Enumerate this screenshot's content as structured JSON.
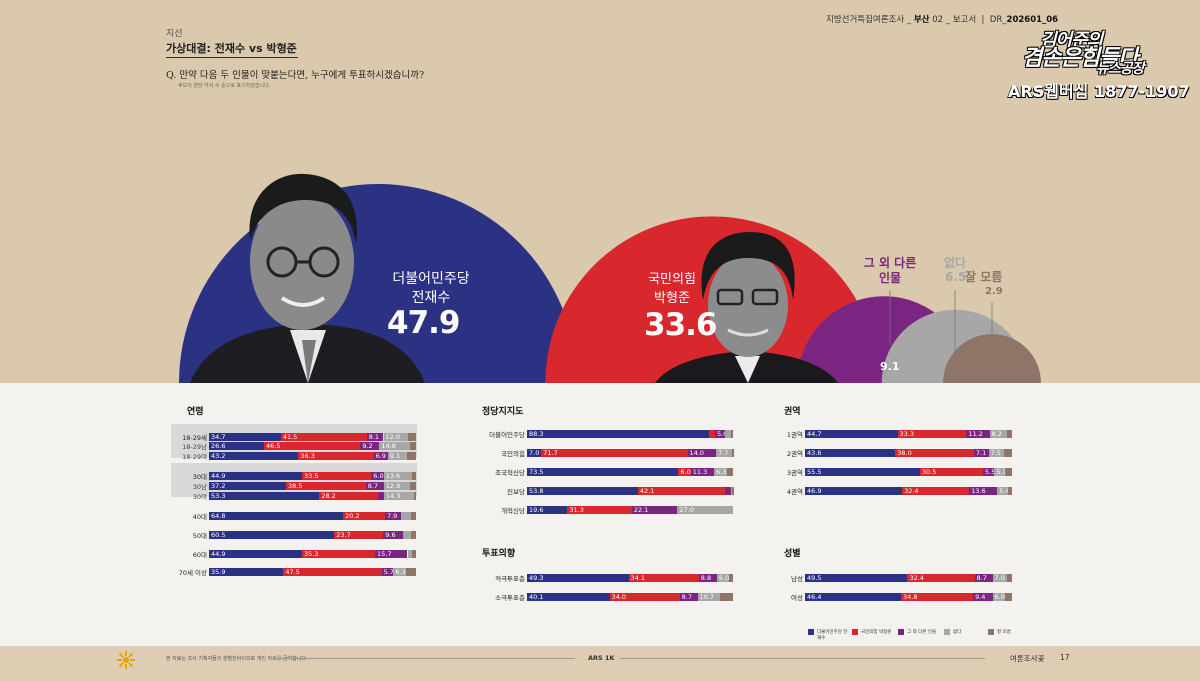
{
  "header": {
    "section": "지선",
    "title": "가상대결: 전재수 vs 박형준",
    "question": "Q. 만약 다음 두 인물이 맞붙는다면, 누구에게 투표하시겠습니까?",
    "note": "후보의 원당 여서 수 순으로 표기하였습니다.",
    "meta_left": "지방선거특집여론조사",
    "meta_region": "부산",
    "meta_page": "02",
    "meta_report": "보고서",
    "meta_code_prefix": "DR_",
    "meta_code": "202601_06"
  },
  "logo": {
    "line1": "김어준의",
    "line2": "겸손은힘들다",
    "line3": "뉴스공장",
    "line4": "ARS웹버십 1877-1907"
  },
  "colors": {
    "dem": "#2b3284",
    "ppp": "#d9272e",
    "other": "#7a2582",
    "none": "#a7a7a7",
    "dunno": "#8f7568"
  },
  "chart_data": [
    {
      "type": "bubble",
      "title": "가상대결: 전재수 vs 박형준",
      "items": [
        {
          "party": "더불어민주당",
          "name": "전재수",
          "value": 47.9,
          "color": "#2b3284"
        },
        {
          "party": "국민의힘",
          "name": "박형준",
          "value": 33.6,
          "color": "#d9272e"
        },
        {
          "party": "그 외 다른 인물",
          "name": "",
          "value": 9.1,
          "color": "#7a2582"
        },
        {
          "party": "없다",
          "name": "",
          "value": 6.5,
          "color": "#a7a7a7"
        },
        {
          "party": "잘 모름",
          "name": "",
          "value": 2.9,
          "color": "#8f7568"
        }
      ]
    },
    {
      "type": "bar",
      "stacked": true,
      "title": "연령",
      "categories": [
        "18-29세",
        "18-29남",
        "18-29여",
        "30대",
        "30남",
        "30여",
        "40대",
        "50대",
        "60대",
        "70세 이상"
      ],
      "series": [
        {
          "name": "더불어민주당 전재수",
          "values": [
            34.7,
            26.6,
            43.2,
            44.9,
            37.2,
            53.3,
            64.8,
            60.5,
            44.9,
            35.9
          ]
        },
        {
          "name": "국민의힘 박형준",
          "values": [
            41.5,
            46.5,
            36.3,
            33.5,
            38.5,
            28.2,
            20.2,
            23.7,
            35.3,
            47.5
          ]
        },
        {
          "name": "그 외 다른 인물",
          "values": [
            8.1,
            9.2,
            6.9,
            6.0,
            8.7,
            3.0,
            7.9,
            9.6,
            15.7,
            5.7
          ]
        },
        {
          "name": "없다",
          "values": [
            12.0,
            14.8,
            9.1,
            13.6,
            12.9,
            14.3,
            4.5,
            3.8,
            2.0,
            6.3
          ]
        },
        {
          "name": "잘 모름",
          "values": [
            3.7,
            2.9,
            4.5,
            2.0,
            2.7,
            1.2,
            2.6,
            2.4,
            2.1,
            4.6
          ]
        }
      ]
    },
    {
      "type": "bar",
      "stacked": true,
      "title": "정당지지도",
      "categories": [
        "더불어민주당",
        "국민의힘",
        "조국혁신당",
        "진보당",
        "개혁신당"
      ],
      "series": [
        {
          "name": "더불어민주당 전재수",
          "values": [
            88.3,
            7.0,
            73.5,
            53.8,
            19.6
          ]
        },
        {
          "name": "국민의힘 박형준",
          "values": [
            3.0,
            71.7,
            6.0,
            42.1,
            31.3
          ]
        },
        {
          "name": "그 외 다른 인물",
          "values": [
            5.0,
            14.0,
            11.3,
            3.0,
            22.1
          ]
        },
        {
          "name": "없다",
          "values": [
            2.5,
            7.7,
            6.3,
            0.6,
            27.0
          ]
        },
        {
          "name": "잘 모름",
          "values": [
            1.2,
            0.6,
            2.9,
            0.5,
            0.0
          ]
        }
      ]
    },
    {
      "type": "bar",
      "stacked": true,
      "title": "투표의향",
      "categories": [
        "적극투표층",
        "소극투표층"
      ],
      "series": [
        {
          "name": "더불어민주당 전재수",
          "values": [
            49.3,
            40.1
          ]
        },
        {
          "name": "국민의힘 박형준",
          "values": [
            34.1,
            34.0
          ]
        },
        {
          "name": "그 외 다른 인물",
          "values": [
            8.8,
            8.7
          ]
        },
        {
          "name": "없다",
          "values": [
            6.0,
            10.7
          ]
        },
        {
          "name": "잘 모름",
          "values": [
            1.8,
            6.5
          ]
        }
      ]
    },
    {
      "type": "bar",
      "stacked": true,
      "title": "권역",
      "categories": [
        "1권역",
        "2권역",
        "3권역",
        "4권역"
      ],
      "series": [
        {
          "name": "더불어민주당 전재수",
          "values": [
            44.7,
            43.6,
            55.5,
            46.9
          ]
        },
        {
          "name": "국민의힘 박형준",
          "values": [
            33.3,
            38.0,
            30.5,
            32.4
          ]
        },
        {
          "name": "그 외 다른 인물",
          "values": [
            11.2,
            7.1,
            5.5,
            13.6
          ]
        },
        {
          "name": "없다",
          "values": [
            8.2,
            7.5,
            5.1,
            5.4
          ]
        },
        {
          "name": "잘 모름",
          "values": [
            2.6,
            3.8,
            3.4,
            1.7
          ]
        }
      ]
    },
    {
      "type": "bar",
      "stacked": true,
      "title": "성별",
      "categories": [
        "남성",
        "여성"
      ],
      "series": [
        {
          "name": "더불어민주당 전재수",
          "values": [
            49.5,
            46.4
          ]
        },
        {
          "name": "국민의힘 박형준",
          "values": [
            32.4,
            34.8
          ]
        },
        {
          "name": "그 외 다른 인물",
          "values": [
            8.7,
            9.4
          ]
        },
        {
          "name": "없다",
          "values": [
            7.0,
            6.0
          ]
        },
        {
          "name": "잘 모름",
          "values": [
            2.4,
            3.4
          ]
        }
      ]
    }
  ],
  "legend": [
    {
      "label": "더불어민주당 전재수",
      "color": "#2b3284"
    },
    {
      "label": "국민의힘 박형준",
      "color": "#d9272e"
    },
    {
      "label": "그 외 다른 인물",
      "color": "#7a2582"
    },
    {
      "label": "없다",
      "color": "#a7a7a7"
    },
    {
      "label": "잘 모름",
      "color": "#8f7568"
    }
  ],
  "footer": {
    "left_note": "본 자료는 조사 기획자들의 판별한바이므로 개인 자료를 금지합니다.",
    "center": "ARS 1K",
    "right": "여론조사꽃",
    "page": "17"
  }
}
